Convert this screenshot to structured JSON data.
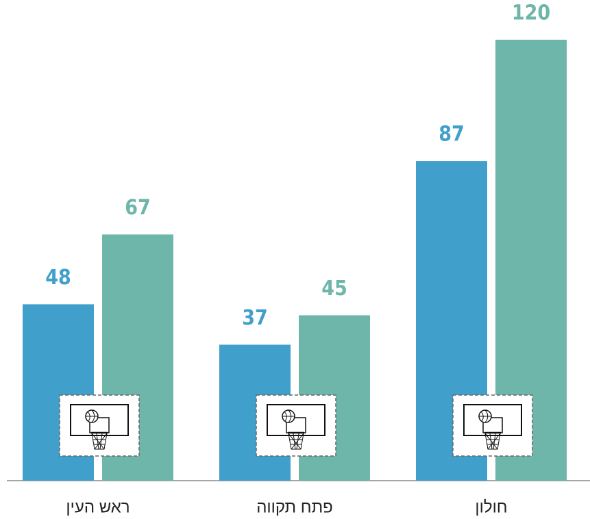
{
  "chart_data": {
    "type": "bar",
    "categories": [
      "ראש העין",
      "פתח תקווה",
      "חולון"
    ],
    "series": [
      {
        "color": "#419fcb",
        "values": [
          48,
          37,
          87
        ]
      },
      {
        "color": "#6db6a9",
        "values": [
          67,
          45,
          120
        ]
      }
    ]
  }
}
